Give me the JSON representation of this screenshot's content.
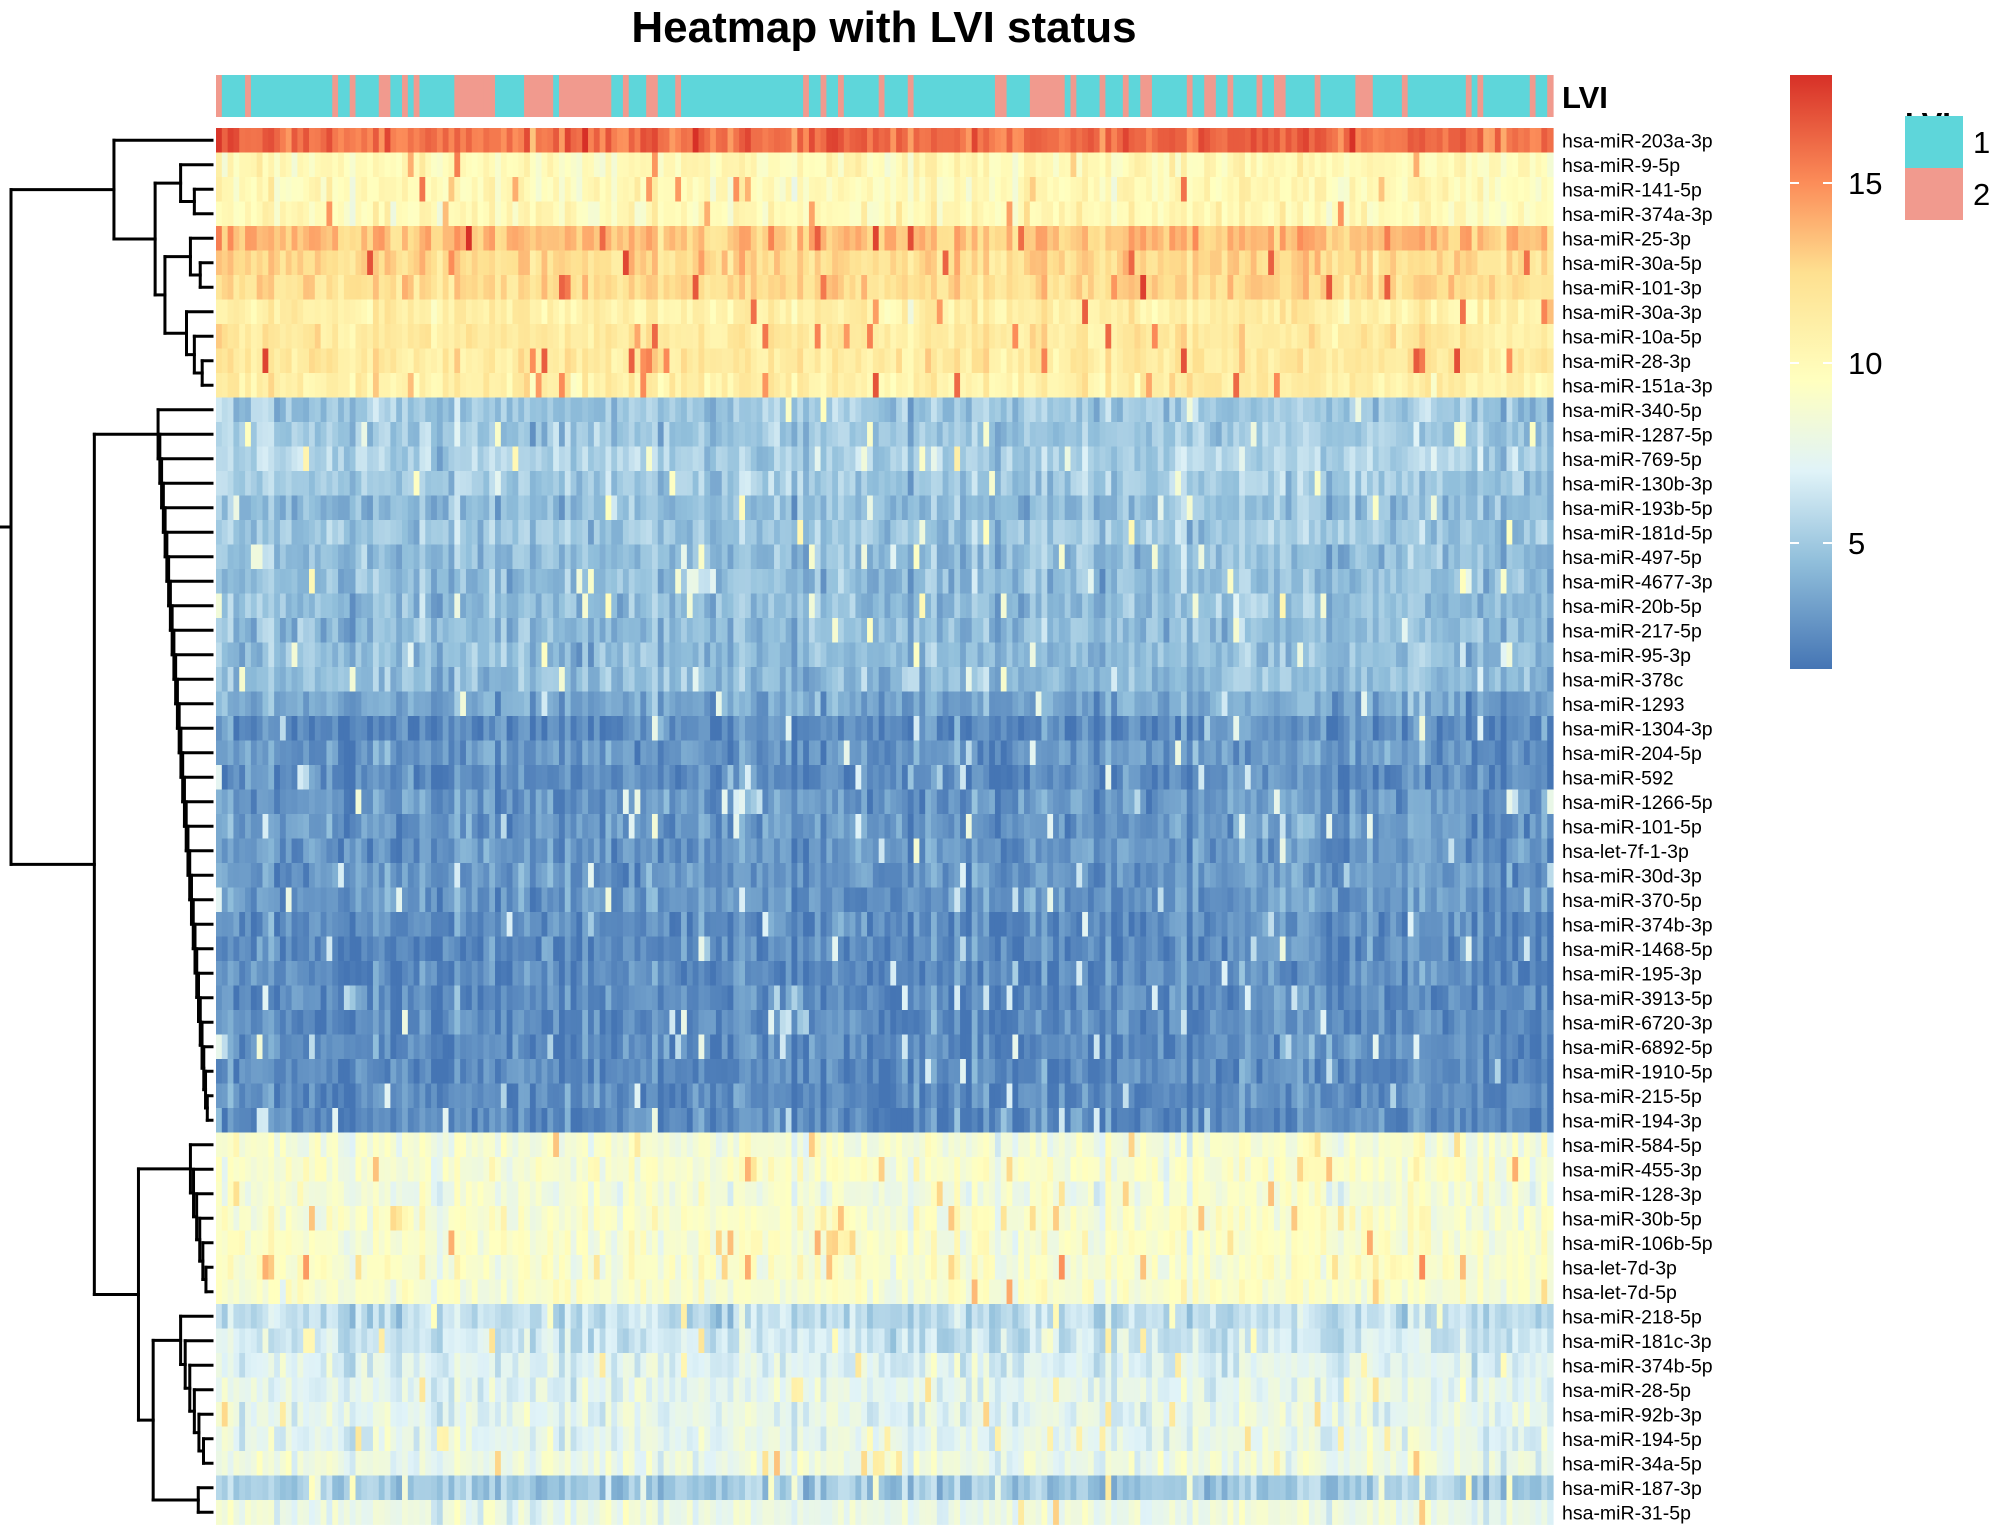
{
  "chart_data": {
    "type": "heatmap",
    "title": "Heatmap with LVI status",
    "annotation": {
      "label": "LVI",
      "legend_title": "LVI",
      "levels": [
        {
          "key": "1",
          "color": "#5ED6DA"
        },
        {
          "key": "2",
          "color": "#F19A8E"
        }
      ]
    },
    "color_scale": {
      "stops": [
        {
          "value": 1.5,
          "color": "#4575B4"
        },
        {
          "value": 4.5,
          "color": "#91BFDB"
        },
        {
          "value": 7.0,
          "color": "#E0F3F8"
        },
        {
          "value": 9.5,
          "color": "#FFFFBF"
        },
        {
          "value": 12.5,
          "color": "#FEE090"
        },
        {
          "value": 15.0,
          "color": "#FC8D59"
        },
        {
          "value": 18.0,
          "color": "#D73027"
        }
      ],
      "range": [
        1.5,
        18.0
      ],
      "ticks": [
        5,
        10,
        15
      ]
    },
    "n_samples": 230,
    "rows": [
      {
        "name": "hsa-miR-203a-3p",
        "mean": 16.0
      },
      {
        "name": "hsa-miR-9-5p",
        "mean": 10.0
      },
      {
        "name": "hsa-miR-141-5p",
        "mean": 10.0
      },
      {
        "name": "hsa-miR-374a-3p",
        "mean": 10.0
      },
      {
        "name": "hsa-miR-25-3p",
        "mean": 13.5
      },
      {
        "name": "hsa-miR-30a-5p",
        "mean": 12.5
      },
      {
        "name": "hsa-miR-101-3p",
        "mean": 12.5
      },
      {
        "name": "hsa-miR-30a-3p",
        "mean": 11.0
      },
      {
        "name": "hsa-miR-10a-5p",
        "mean": 11.5
      },
      {
        "name": "hsa-miR-28-3p",
        "mean": 11.5
      },
      {
        "name": "hsa-miR-151a-3p",
        "mean": 11.0
      },
      {
        "name": "hsa-miR-340-5p",
        "mean": 5.0
      },
      {
        "name": "hsa-miR-1287-5p",
        "mean": 5.0
      },
      {
        "name": "hsa-miR-769-5p",
        "mean": 5.5
      },
      {
        "name": "hsa-miR-130b-3p",
        "mean": 5.0
      },
      {
        "name": "hsa-miR-193b-5p",
        "mean": 4.5
      },
      {
        "name": "hsa-miR-181d-5p",
        "mean": 5.0
      },
      {
        "name": "hsa-miR-497-5p",
        "mean": 4.5
      },
      {
        "name": "hsa-miR-4677-3p",
        "mean": 4.5
      },
      {
        "name": "hsa-miR-20b-5p",
        "mean": 4.5
      },
      {
        "name": "hsa-miR-217-5p",
        "mean": 4.5
      },
      {
        "name": "hsa-miR-95-3p",
        "mean": 4.5
      },
      {
        "name": "hsa-miR-378c",
        "mean": 4.5
      },
      {
        "name": "hsa-miR-1293",
        "mean": 3.5
      },
      {
        "name": "hsa-miR-1304-3p",
        "mean": 2.5
      },
      {
        "name": "hsa-miR-204-5p",
        "mean": 3.0
      },
      {
        "name": "hsa-miR-592",
        "mean": 2.5
      },
      {
        "name": "hsa-miR-1266-5p",
        "mean": 3.0
      },
      {
        "name": "hsa-miR-101-5p",
        "mean": 3.0
      },
      {
        "name": "hsa-let-7f-1-3p",
        "mean": 3.0
      },
      {
        "name": "hsa-miR-30d-3p",
        "mean": 3.0
      },
      {
        "name": "hsa-miR-370-5p",
        "mean": 3.0
      },
      {
        "name": "hsa-miR-374b-3p",
        "mean": 2.5
      },
      {
        "name": "hsa-miR-1468-5p",
        "mean": 2.5
      },
      {
        "name": "hsa-miR-195-3p",
        "mean": 2.5
      },
      {
        "name": "hsa-miR-3913-5p",
        "mean": 2.5
      },
      {
        "name": "hsa-miR-6720-3p",
        "mean": 2.5
      },
      {
        "name": "hsa-miR-6892-5p",
        "mean": 2.5
      },
      {
        "name": "hsa-miR-1910-5p",
        "mean": 2.5
      },
      {
        "name": "hsa-miR-215-5p",
        "mean": 2.5
      },
      {
        "name": "hsa-miR-194-3p",
        "mean": 2.5
      },
      {
        "name": "hsa-miR-584-5p",
        "mean": 8.5
      },
      {
        "name": "hsa-miR-455-3p",
        "mean": 9.0
      },
      {
        "name": "hsa-miR-128-3p",
        "mean": 8.5
      },
      {
        "name": "hsa-miR-30b-5p",
        "mean": 9.0
      },
      {
        "name": "hsa-miR-106b-5p",
        "mean": 9.0
      },
      {
        "name": "hsa-let-7d-3p",
        "mean": 9.0
      },
      {
        "name": "hsa-let-7d-5p",
        "mean": 9.0
      },
      {
        "name": "hsa-miR-218-5p",
        "mean": 6.0
      },
      {
        "name": "hsa-miR-181c-3p",
        "mean": 6.5
      },
      {
        "name": "hsa-miR-374b-5p",
        "mean": 7.0
      },
      {
        "name": "hsa-miR-28-5p",
        "mean": 7.5
      },
      {
        "name": "hsa-miR-92b-3p",
        "mean": 7.5
      },
      {
        "name": "hsa-miR-194-5p",
        "mean": 7.5
      },
      {
        "name": "hsa-miR-34a-5p",
        "mean": 8.0
      },
      {
        "name": "hsa-miR-187-3p",
        "mean": 5.0
      },
      {
        "name": "hsa-miR-31-5p",
        "mean": 8.0
      }
    ]
  }
}
